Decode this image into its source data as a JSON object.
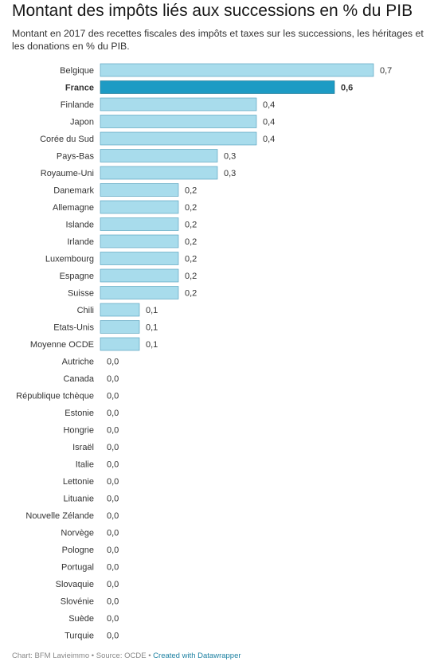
{
  "title": "Montant des impôts liés aux successions en % du PIB",
  "subtitle": "Montant en 2017 des recettes fiscales des impôts et taxes sur les successions, les héritages et les donations en % du PIB.",
  "footer": {
    "source_text": "Chart: BFM Lavieimmo • Source: OCDE • ",
    "credit": "Created with Datawrapper"
  },
  "chart_data": {
    "type": "bar",
    "orientation": "horizontal",
    "title": "Montant des impôts liés aux successions en % du PIB",
    "categories": [
      "Belgique",
      "France",
      "Finlande",
      "Japon",
      "Corée du Sud",
      "Pays-Bas",
      "Royaume-Uni",
      "Danemark",
      "Allemagne",
      "Islande",
      "Irlande",
      "Luxembourg",
      "Espagne",
      "Suisse",
      "Chili",
      "Etats-Unis",
      "Moyenne OCDE",
      "Autriche",
      "Canada",
      "République tchèque",
      "Estonie",
      "Hongrie",
      "Israël",
      "Italie",
      "Lettonie",
      "Lituanie",
      "Nouvelle Zélande",
      "Norvège",
      "Pologne",
      "Portugal",
      "Slovaquie",
      "Slovénie",
      "Suède",
      "Turquie"
    ],
    "values": [
      0.7,
      0.6,
      0.4,
      0.4,
      0.4,
      0.3,
      0.3,
      0.2,
      0.2,
      0.2,
      0.2,
      0.2,
      0.2,
      0.2,
      0.1,
      0.1,
      0.1,
      0.0,
      0.0,
      0.0,
      0.0,
      0.0,
      0.0,
      0.0,
      0.0,
      0.0,
      0.0,
      0.0,
      0.0,
      0.0,
      0.0,
      0.0,
      0.0,
      0.0
    ],
    "value_labels": [
      "0,7",
      "0,6",
      "0,4",
      "0,4",
      "0,4",
      "0,3",
      "0,3",
      "0,2",
      "0,2",
      "0,2",
      "0,2",
      "0,2",
      "0,2",
      "0,2",
      "0,1",
      "0,1",
      "0,1",
      "0,0",
      "0,0",
      "0,0",
      "0,0",
      "0,0",
      "0,0",
      "0,0",
      "0,0",
      "0,0",
      "0,0",
      "0,0",
      "0,0",
      "0,0",
      "0,0",
      "0,0",
      "0,0",
      "0,0"
    ],
    "highlight": "France",
    "xlim": [
      0,
      0.7
    ],
    "colors": {
      "bar": "#a8dcec",
      "bar_stroke": "#4a9ab8",
      "highlight": "#1d9bc4",
      "highlight_stroke": "#146f8d"
    }
  }
}
